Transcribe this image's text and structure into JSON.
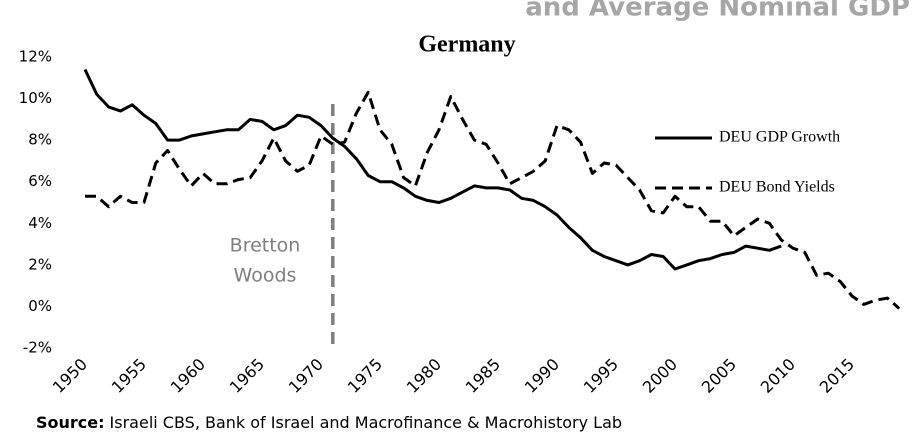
{
  "chart_data": {
    "type": "line",
    "heading": "and Average Nominal GDP",
    "title": "Germany",
    "source_label": "Source:",
    "source": "Israeli CBS, Bank of Israel and Macrofinance & Macrohistory Lab",
    "annotation": {
      "lines": [
        "Bretton",
        "Woods"
      ],
      "x": 1971,
      "color": "#7f7f7f"
    },
    "x": [
      1950,
      1951,
      1952,
      1953,
      1954,
      1955,
      1956,
      1957,
      1958,
      1959,
      1960,
      1961,
      1962,
      1963,
      1964,
      1965,
      1966,
      1967,
      1968,
      1969,
      1970,
      1971,
      1972,
      1973,
      1974,
      1975,
      1976,
      1977,
      1978,
      1979,
      1980,
      1981,
      1982,
      1983,
      1984,
      1985,
      1986,
      1987,
      1988,
      1989,
      1990,
      1991,
      1992,
      1993,
      1994,
      1995,
      1996,
      1997,
      1998,
      1999,
      2000,
      2001,
      2002,
      2003,
      2004,
      2005,
      2006,
      2007,
      2008,
      2009,
      2010,
      2011,
      2012,
      2013,
      2014,
      2015,
      2016,
      2017,
      2018,
      2019
    ],
    "series": [
      {
        "name": "DEU GDP Growth",
        "color": "#000000",
        "dash": "solid",
        "values": [
          11.4,
          10.2,
          9.6,
          9.4,
          9.7,
          9.2,
          8.8,
          8.0,
          8.0,
          8.2,
          8.3,
          8.4,
          8.5,
          8.5,
          9.0,
          8.9,
          8.5,
          8.7,
          9.2,
          9.1,
          8.7,
          8.1,
          7.7,
          7.1,
          6.3,
          6.0,
          6.0,
          5.7,
          5.3,
          5.1,
          5.0,
          5.2,
          5.5,
          5.8,
          5.7,
          5.7,
          5.6,
          5.2,
          5.1,
          4.8,
          4.4,
          3.8,
          3.3,
          2.7,
          2.4,
          2.2,
          2.0,
          2.2,
          2.5,
          2.4,
          1.8,
          2.0,
          2.2,
          2.3,
          2.5,
          2.6,
          2.9,
          2.8,
          2.7,
          2.9,
          null,
          null,
          null,
          null,
          null,
          null,
          null,
          null,
          null,
          null
        ]
      },
      {
        "name": "DEU Bond Yields",
        "color": "#000000",
        "dash": "dashed",
        "values": [
          5.3,
          5.3,
          4.8,
          5.3,
          5.0,
          5.0,
          6.9,
          7.5,
          6.6,
          5.8,
          6.4,
          5.9,
          5.9,
          6.1,
          6.2,
          7.0,
          8.1,
          7.0,
          6.5,
          6.8,
          8.2,
          7.8,
          7.9,
          9.3,
          10.3,
          8.5,
          7.8,
          6.2,
          5.8,
          7.4,
          8.5,
          10.1,
          9.0,
          8.0,
          7.8,
          6.9,
          5.9,
          6.2,
          6.5,
          7.0,
          8.7,
          8.5,
          7.9,
          6.4,
          6.9,
          6.8,
          6.2,
          5.6,
          4.6,
          4.5,
          5.3,
          4.8,
          4.8,
          4.1,
          4.1,
          3.4,
          3.8,
          4.2,
          4.0,
          3.2,
          2.8,
          2.6,
          1.5,
          1.6,
          1.2,
          0.5,
          0.1,
          0.3,
          0.4,
          -0.1
        ]
      }
    ],
    "xlim": [
      1948,
      2020
    ],
    "xticks": [
      1950,
      1955,
      1960,
      1965,
      1970,
      1975,
      1980,
      1985,
      1990,
      1995,
      2000,
      2005,
      2010,
      2015
    ],
    "ylim": [
      -2,
      12
    ],
    "yticks": [
      {
        "value": -2,
        "label": "-2%"
      },
      {
        "value": 0,
        "label": "0%"
      },
      {
        "value": 2,
        "label": "2%"
      },
      {
        "value": 4,
        "label": "4%"
      },
      {
        "value": 6,
        "label": "6%"
      },
      {
        "value": 8,
        "label": "8%"
      },
      {
        "value": 10,
        "label": "10%"
      },
      {
        "value": 12,
        "label": "12%"
      }
    ],
    "grid": false
  }
}
